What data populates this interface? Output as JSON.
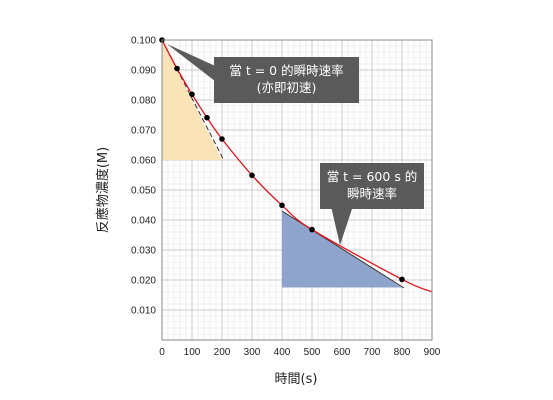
{
  "chart_data": {
    "type": "scatter",
    "title": "",
    "xlabel": "時間(s)",
    "ylabel": "反應物濃度(M)",
    "xlim": [
      0,
      900
    ],
    "ylim": [
      0,
      0.1
    ],
    "x_ticks": [
      "0",
      "100",
      "200",
      "300",
      "400",
      "500",
      "600",
      "700",
      "800",
      "900"
    ],
    "y_ticks": [
      "0.010",
      "0.020",
      "0.030",
      "0.040",
      "0.050",
      "0.060",
      "0.070",
      "0.080",
      "0.090",
      "0.100"
    ],
    "grid": true,
    "series": [
      {
        "x": [
          0,
          50,
          100,
          150,
          200,
          300,
          400,
          500,
          800
        ],
        "y": [
          0.1,
          0.0905,
          0.0819,
          0.0741,
          0.067,
          0.0549,
          0.0449,
          0.0368,
          0.0202
        ]
      }
    ],
    "tangents": [
      {
        "at_x": 0,
        "triangle": {
          "x0": 0,
          "x1": 200,
          "y_top": 0.1,
          "y_bottom": 0.06
        },
        "color": "#fbe3b8"
      },
      {
        "at_x": 600,
        "triangle": {
          "x0": 400,
          "x1": 800,
          "y_top": 0.043,
          "y_bottom": 0.0175
        },
        "color": "#8fa4cc"
      }
    ],
    "curve_color": "#e8141b",
    "annotations": [
      {
        "lines": [
          "當 t = 0 的瞬時速率",
          "(亦即初速)"
        ]
      },
      {
        "lines": [
          "當 t = 600 s 的",
          "瞬時速率"
        ]
      }
    ],
    "callout_color": "#5a5a5a"
  }
}
